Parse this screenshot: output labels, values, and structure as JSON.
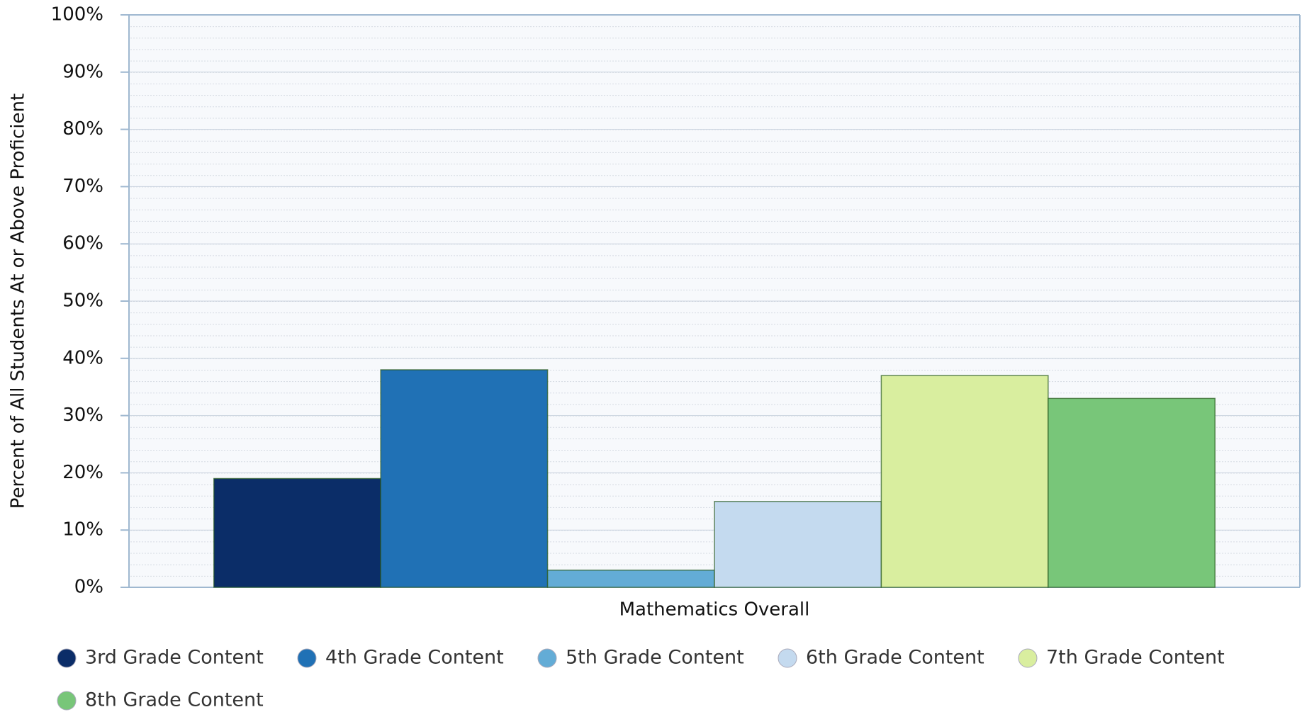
{
  "chart_data": {
    "type": "bar",
    "y_label": "Percent of All Students At or Above Proficient",
    "categories": [
      "Mathematics Overall"
    ],
    "series": [
      {
        "name": "3rd Grade Content",
        "color": "#0b2d68",
        "values": [
          19
        ]
      },
      {
        "name": "4th Grade Content",
        "color": "#2071b5",
        "values": [
          38
        ]
      },
      {
        "name": "5th Grade Content",
        "color": "#63acd6",
        "values": [
          3
        ]
      },
      {
        "name": "6th Grade Content",
        "color": "#c4daef",
        "values": [
          15
        ]
      },
      {
        "name": "7th Grade Content",
        "color": "#d9ee9f",
        "values": [
          37
        ]
      },
      {
        "name": "8th Grade Content",
        "color": "#78c679",
        "values": [
          33
        ]
      }
    ],
    "ylim": [
      0,
      100
    ],
    "yticks": [
      {
        "value": 0,
        "label": "0%"
      },
      {
        "value": 10,
        "label": "10%"
      },
      {
        "value": 20,
        "label": "20%"
      },
      {
        "value": 30,
        "label": "30%"
      },
      {
        "value": 40,
        "label": "40%"
      },
      {
        "value": 50,
        "label": "50%"
      },
      {
        "value": 60,
        "label": "60%"
      },
      {
        "value": 70,
        "label": "70%"
      },
      {
        "value": 80,
        "label": "80%"
      },
      {
        "value": 90,
        "label": "90%"
      },
      {
        "value": 100,
        "label": "100%"
      }
    ],
    "grid": true
  }
}
